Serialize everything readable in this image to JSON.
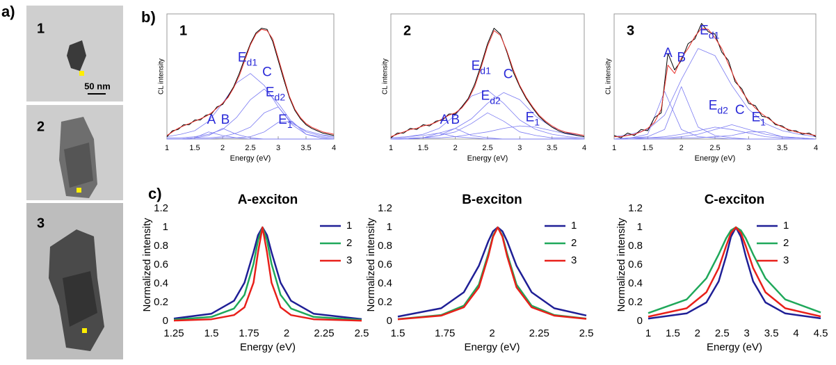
{
  "panel_labels": {
    "a": "a)",
    "b": "b)",
    "c": "c)"
  },
  "images": [
    {
      "label": "1",
      "scale_bar": "50 nm"
    },
    {
      "label": "2"
    },
    {
      "label": "3"
    }
  ],
  "chart_data": [
    {
      "type": "line",
      "label": "1",
      "frame": true,
      "xlabel": "Energy (eV)",
      "ylabel": "CL intensity",
      "xlim": [
        1,
        4
      ],
      "ylim": [
        0,
        1.05
      ],
      "xticks": [
        1,
        1.5,
        2,
        2.5,
        3,
        3.5,
        4
      ],
      "x": [
        1.0,
        1.1,
        1.2,
        1.3,
        1.4,
        1.5,
        1.6,
        1.7,
        1.8,
        1.9,
        2.0,
        2.1,
        2.2,
        2.3,
        2.4,
        2.5,
        2.6,
        2.7,
        2.8,
        2.9,
        3.0,
        3.1,
        3.2,
        3.3,
        3.4,
        3.5,
        3.6,
        3.7,
        3.8,
        3.9,
        4.0
      ],
      "series": [
        {
          "color": "#000000",
          "values": [
            0.02,
            0.07,
            0.08,
            0.12,
            0.12,
            0.16,
            0.16,
            0.2,
            0.21,
            0.27,
            0.29,
            0.36,
            0.44,
            0.55,
            0.68,
            0.8,
            0.89,
            0.93,
            0.92,
            0.82,
            0.66,
            0.5,
            0.35,
            0.24,
            0.17,
            0.12,
            0.09,
            0.07,
            0.05,
            0.04,
            0.03
          ]
        },
        {
          "color": "#e8302a",
          "values": [
            0.03,
            0.06,
            0.09,
            0.11,
            0.13,
            0.15,
            0.17,
            0.19,
            0.22,
            0.26,
            0.3,
            0.35,
            0.43,
            0.53,
            0.66,
            0.79,
            0.88,
            0.92,
            0.91,
            0.84,
            0.68,
            0.52,
            0.36,
            0.25,
            0.18,
            0.13,
            0.1,
            0.08,
            0.06,
            0.05,
            0.04
          ]
        }
      ],
      "components": {
        "color": "#7a7af2",
        "x": [
          1,
          1.25,
          1.5,
          1.75,
          2,
          2.25,
          2.5,
          2.75,
          3,
          3.25,
          3.5,
          3.75,
          4
        ],
        "series": [
          {
            "values": [
              0,
              0,
              0.01,
              0.06,
              0.03,
              0.01,
              0,
              0,
              0,
              0,
              0,
              0,
              0
            ]
          },
          {
            "values": [
              0,
              0,
              0.01,
              0.03,
              0.09,
              0.04,
              0.01,
              0,
              0,
              0,
              0,
              0,
              0
            ]
          },
          {
            "values": [
              0.02,
              0.04,
              0.07,
              0.15,
              0.3,
              0.47,
              0.55,
              0.45,
              0.27,
              0.13,
              0.07,
              0.04,
              0.02
            ]
          },
          {
            "values": [
              0.01,
              0.01,
              0.02,
              0.04,
              0.08,
              0.18,
              0.33,
              0.42,
              0.3,
              0.14,
              0.06,
              0.03,
              0.02
            ]
          },
          {
            "values": [
              0,
              0,
              0.01,
              0.01,
              0.02,
              0.05,
              0.1,
              0.22,
              0.27,
              0.12,
              0.04,
              0.02,
              0.01
            ]
          },
          {
            "values": [
              0,
              0,
              0,
              0,
              0.01,
              0.01,
              0.02,
              0.06,
              0.14,
              0.15,
              0.04,
              0.01,
              0
            ]
          }
        ]
      },
      "annotations": [
        {
          "text": "A",
          "x": 1.8,
          "y": 0.1
        },
        {
          "text": "B",
          "x": 2.05,
          "y": 0.1
        },
        {
          "text": "E",
          "subscript": "d1",
          "x": 2.45,
          "y": 0.62
        },
        {
          "text": "C",
          "x": 2.8,
          "y": 0.5
        },
        {
          "text": "E",
          "subscript": "d2",
          "x": 2.95,
          "y": 0.33
        },
        {
          "text": "E",
          "subscript": "1",
          "x": 3.13,
          "y": 0.1
        }
      ]
    },
    {
      "type": "line",
      "label": "2",
      "frame": true,
      "xlabel": "Energy (eV)",
      "ylabel": "CL intensity",
      "xlim": [
        1,
        4
      ],
      "ylim": [
        0,
        1.05
      ],
      "xticks": [
        1,
        1.5,
        2,
        2.5,
        3,
        3.5,
        4
      ],
      "x": [
        1.0,
        1.1,
        1.2,
        1.3,
        1.4,
        1.5,
        1.6,
        1.7,
        1.8,
        1.9,
        2.0,
        2.1,
        2.2,
        2.3,
        2.4,
        2.5,
        2.6,
        2.7,
        2.8,
        2.9,
        3.0,
        3.1,
        3.2,
        3.3,
        3.4,
        3.5,
        3.6,
        3.7,
        3.8,
        3.9,
        4.0
      ],
      "series": [
        {
          "color": "#000000",
          "values": [
            0.01,
            0.05,
            0.05,
            0.09,
            0.08,
            0.12,
            0.11,
            0.15,
            0.16,
            0.21,
            0.21,
            0.27,
            0.34,
            0.46,
            0.62,
            0.8,
            0.93,
            0.88,
            0.73,
            0.56,
            0.44,
            0.34,
            0.26,
            0.19,
            0.14,
            0.1,
            0.07,
            0.05,
            0.04,
            0.03,
            0.02
          ]
        },
        {
          "color": "#e8302a",
          "values": [
            0.02,
            0.04,
            0.06,
            0.08,
            0.09,
            0.11,
            0.12,
            0.14,
            0.17,
            0.2,
            0.22,
            0.26,
            0.33,
            0.44,
            0.6,
            0.78,
            0.91,
            0.87,
            0.74,
            0.58,
            0.45,
            0.35,
            0.27,
            0.2,
            0.15,
            0.11,
            0.08,
            0.06,
            0.05,
            0.04,
            0.03
          ]
        }
      ],
      "components": {
        "color": "#7a7af2",
        "x": [
          1,
          1.25,
          1.5,
          1.75,
          2,
          2.25,
          2.5,
          2.75,
          3,
          3.25,
          3.5,
          3.75,
          4
        ],
        "series": [
          {
            "values": [
              0,
              0,
              0.01,
              0.05,
              0.02,
              0.01,
              0,
              0,
              0,
              0,
              0,
              0,
              0
            ]
          },
          {
            "values": [
              0,
              0,
              0.01,
              0.03,
              0.09,
              0.03,
              0.01,
              0,
              0,
              0,
              0,
              0,
              0
            ]
          },
          {
            "values": [
              0.01,
              0.02,
              0.04,
              0.09,
              0.2,
              0.36,
              0.41,
              0.3,
              0.16,
              0.08,
              0.04,
              0.02,
              0.01
            ]
          },
          {
            "values": [
              0,
              0.01,
              0.01,
              0.03,
              0.06,
              0.13,
              0.22,
              0.15,
              0.06,
              0.03,
              0.01,
              0.01,
              0
            ]
          },
          {
            "values": [
              0.01,
              0.02,
              0.03,
              0.05,
              0.09,
              0.17,
              0.3,
              0.39,
              0.33,
              0.19,
              0.1,
              0.05,
              0.03
            ]
          },
          {
            "values": [
              0,
              0,
              0.01,
              0.01,
              0.02,
              0.04,
              0.06,
              0.09,
              0.11,
              0.1,
              0.07,
              0.04,
              0.02
            ]
          }
        ]
      },
      "annotations": [
        {
          "text": "A",
          "x": 1.83,
          "y": 0.1
        },
        {
          "text": "B",
          "x": 2.0,
          "y": 0.1
        },
        {
          "text": "E",
          "subscript": "d1",
          "x": 2.4,
          "y": 0.55
        },
        {
          "text": "E",
          "subscript": "d2",
          "x": 2.55,
          "y": 0.3
        },
        {
          "text": "C",
          "x": 2.82,
          "y": 0.48
        },
        {
          "text": "E",
          "subscript": "1",
          "x": 3.2,
          "y": 0.12
        }
      ]
    },
    {
      "type": "line",
      "label": "3",
      "frame": true,
      "xlabel": "Energy (eV)",
      "ylabel": "CL intensity",
      "xlim": [
        1,
        4
      ],
      "ylim": [
        0,
        1.05
      ],
      "xticks": [
        1,
        1.5,
        2,
        2.5,
        3,
        3.5,
        4
      ],
      "x": [
        1.0,
        1.1,
        1.2,
        1.3,
        1.4,
        1.5,
        1.6,
        1.7,
        1.8,
        1.9,
        2.0,
        2.1,
        2.2,
        2.3,
        2.4,
        2.5,
        2.6,
        2.7,
        2.8,
        2.9,
        3.0,
        3.1,
        3.2,
        3.3,
        3.4,
        3.5,
        3.6,
        3.7,
        3.8,
        3.9,
        4.0
      ],
      "series": [
        {
          "color": "#000000",
          "values": [
            0.03,
            0.01,
            0.05,
            0.03,
            0.08,
            0.07,
            0.18,
            0.22,
            0.72,
            0.58,
            0.66,
            0.8,
            0.84,
            0.97,
            0.9,
            0.88,
            0.73,
            0.66,
            0.48,
            0.42,
            0.3,
            0.28,
            0.19,
            0.18,
            0.12,
            0.11,
            0.07,
            0.07,
            0.04,
            0.05,
            0.02
          ]
        },
        {
          "color": "#e8302a",
          "values": [
            0.02,
            0.02,
            0.03,
            0.04,
            0.06,
            0.09,
            0.14,
            0.25,
            0.62,
            0.55,
            0.68,
            0.76,
            0.86,
            0.93,
            0.92,
            0.85,
            0.76,
            0.63,
            0.5,
            0.4,
            0.32,
            0.26,
            0.21,
            0.17,
            0.13,
            0.1,
            0.08,
            0.06,
            0.05,
            0.04,
            0.03
          ]
        }
      ],
      "components": {
        "color": "#7a7af2",
        "x": [
          1,
          1.25,
          1.5,
          1.75,
          2,
          2.25,
          2.5,
          2.75,
          3,
          3.25,
          3.5,
          3.75,
          4
        ],
        "series": [
          {
            "values": [
              0,
              0.01,
              0.04,
              0.4,
              0.08,
              0.02,
              0.01,
              0,
              0,
              0,
              0,
              0,
              0
            ]
          },
          {
            "values": [
              0,
              0.01,
              0.02,
              0.08,
              0.44,
              0.1,
              0.03,
              0.01,
              0,
              0,
              0,
              0,
              0
            ]
          },
          {
            "values": [
              0.02,
              0.04,
              0.08,
              0.2,
              0.5,
              0.76,
              0.7,
              0.45,
              0.25,
              0.13,
              0.07,
              0.04,
              0.02
            ]
          },
          {
            "values": [
              0,
              0.01,
              0.01,
              0.02,
              0.04,
              0.07,
              0.1,
              0.08,
              0.05,
              0.02,
              0.01,
              0.01,
              0
            ]
          },
          {
            "values": [
              0,
              0,
              0.01,
              0.01,
              0.02,
              0.04,
              0.08,
              0.12,
              0.08,
              0.04,
              0.02,
              0.01,
              0
            ]
          },
          {
            "values": [
              0,
              0,
              0,
              0,
              0.01,
              0.01,
              0.02,
              0.03,
              0.06,
              0.06,
              0.02,
              0.01,
              0
            ]
          }
        ]
      },
      "annotations": [
        {
          "text": "A",
          "x": 1.8,
          "y": 0.66
        },
        {
          "text": "B",
          "x": 2.0,
          "y": 0.62
        },
        {
          "text": "E",
          "subscript": "d1",
          "x": 2.42,
          "y": 0.85
        },
        {
          "text": "E",
          "subscript": "d2",
          "x": 2.55,
          "y": 0.22
        },
        {
          "text": "C",
          "x": 2.87,
          "y": 0.18
        },
        {
          "text": "E",
          "subscript": "1",
          "x": 3.15,
          "y": 0.12
        }
      ]
    },
    {
      "type": "line",
      "title": "A-exciton",
      "xlabel": "Energy (eV)",
      "ylabel": "Normalized intensity",
      "xlim": [
        1.25,
        2.5
      ],
      "ylim": [
        0,
        1.2
      ],
      "xticks": [
        1.25,
        1.5,
        1.75,
        2,
        2.25,
        2.5
      ],
      "yticks": [
        0,
        0.2,
        0.4,
        0.6,
        0.8,
        1,
        1.2
      ],
      "x": [
        1.25,
        1.5,
        1.65,
        1.72,
        1.78,
        1.81,
        1.84,
        1.87,
        1.9,
        1.96,
        2.03,
        2.18,
        2.5
      ],
      "series": [
        {
          "name": "1",
          "color": "#1f1f96",
          "values": [
            0.028,
            0.08,
            0.217,
            0.41,
            0.735,
            0.917,
            1,
            0.917,
            0.735,
            0.41,
            0.217,
            0.08,
            0.022
          ]
        },
        {
          "name": "2",
          "color": "#1fa85a",
          "values": [
            0.016,
            0.046,
            0.135,
            0.281,
            0.61,
            0.862,
            1,
            0.862,
            0.61,
            0.281,
            0.135,
            0.046,
            0.013
          ]
        },
        {
          "name": "3",
          "color": "#e8201a",
          "values": [
            0.007,
            0.021,
            0.065,
            0.148,
            0.41,
            0.735,
            1,
            0.735,
            0.41,
            0.148,
            0.065,
            0.021,
            0.006
          ]
        }
      ]
    },
    {
      "type": "line",
      "title": "B-exciton",
      "xlabel": "Energy (eV)",
      "ylabel": "Normalized intensity",
      "xlim": [
        1.5,
        2.5
      ],
      "ylim": [
        0,
        1.2
      ],
      "xticks": [
        1.5,
        1.75,
        2,
        2.25,
        2.5
      ],
      "yticks": [
        0,
        0.2,
        0.4,
        0.6,
        0.8,
        1,
        1.2
      ],
      "x": [
        1.5,
        1.73,
        1.85,
        1.93,
        1.98,
        2.005,
        2.03,
        2.055,
        2.08,
        2.13,
        2.21,
        2.33,
        2.5
      ],
      "series": [
        {
          "name": "1",
          "color": "#1f1f96",
          "values": [
            0.049,
            0.138,
            0.308,
            0.59,
            0.852,
            0.958,
            1,
            0.958,
            0.852,
            0.59,
            0.308,
            0.138,
            0.061
          ]
        },
        {
          "name": "2",
          "color": "#1fa85a",
          "values": [
            0.022,
            0.066,
            0.165,
            0.39,
            0.719,
            0.911,
            1,
            0.911,
            0.719,
            0.39,
            0.165,
            0.066,
            0.028
          ]
        },
        {
          "name": "3",
          "color": "#e8201a",
          "values": [
            0.02,
            0.059,
            0.148,
            0.36,
            0.692,
            0.9,
            1,
            0.9,
            0.692,
            0.36,
            0.148,
            0.059,
            0.025
          ]
        }
      ]
    },
    {
      "type": "line",
      "title": "C-exciton",
      "xlabel": "Energy (eV)",
      "ylabel": "Normalized intensity",
      "xlim": [
        1,
        4.5
      ],
      "ylim": [
        0,
        1.2
      ],
      "xticks": [
        1,
        1.5,
        2,
        2.5,
        3,
        3.5,
        4,
        4.5
      ],
      "yticks": [
        0,
        0.2,
        0.4,
        0.6,
        0.8,
        1,
        1.2
      ],
      "x": [
        1,
        1.78,
        2.18,
        2.43,
        2.58,
        2.68,
        2.78,
        2.88,
        2.98,
        3.13,
        3.38,
        3.78,
        4.5
      ],
      "series": [
        {
          "name": "1",
          "color": "#1f1f96",
          "values": [
            0.028,
            0.083,
            0.2,
            0.424,
            0.692,
            0.9,
            1,
            0.9,
            0.692,
            0.424,
            0.2,
            0.083,
            0.03
          ]
        },
        {
          "name": "2",
          "color": "#1fa85a",
          "values": [
            0.087,
            0.232,
            0.457,
            0.712,
            0.883,
            0.968,
            1,
            0.968,
            0.883,
            0.712,
            0.457,
            0.232,
            0.093
          ]
        },
        {
          "name": "3",
          "color": "#e8201a",
          "values": [
            0.048,
            0.138,
            0.308,
            0.566,
            0.8,
            0.941,
            1,
            0.941,
            0.8,
            0.566,
            0.308,
            0.138,
            0.051
          ]
        }
      ]
    }
  ]
}
